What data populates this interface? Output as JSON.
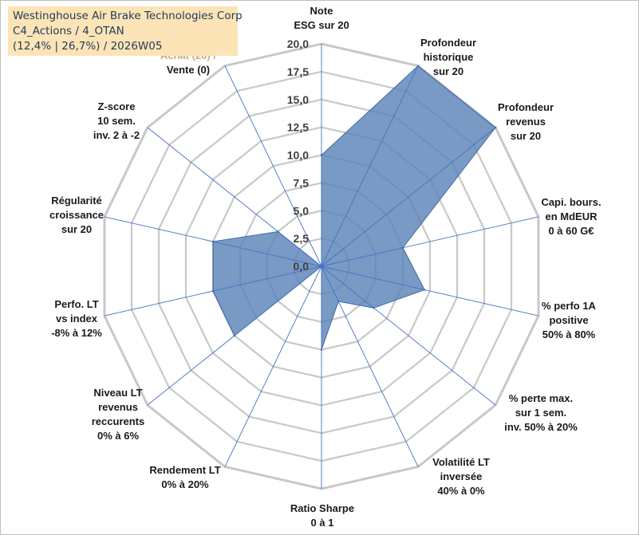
{
  "title_box": {
    "line1": "Westinghouse Air Brake Technologies Corp",
    "line2": "C4_Actions / 4_OTAN",
    "line3": "(12,4% | 26,7%) / 2026W05"
  },
  "colors": {
    "fill": "#5b84b8",
    "stroke": "#3f6aa5",
    "grid": "#c8c8c8",
    "spoke": "#4472c4",
    "title_bg": "#fce4b6",
    "muted_label": "#c9ad72"
  },
  "chart_data": {
    "type": "radar",
    "rmin": 0,
    "rmax": 20,
    "tick_step": 2.5,
    "tick_labels": [
      "0,0",
      "2,5",
      "5,0",
      "7,5",
      "10,0",
      "12,5",
      "15,0",
      "17,5",
      "20,0"
    ],
    "axes": [
      {
        "label": [
          "Note",
          "ESG sur 20"
        ],
        "value": 10.0
      },
      {
        "label": [
          "Profondeur",
          "historique",
          "sur 20"
        ],
        "value": 20.0
      },
      {
        "label": [
          "Profondeur",
          "revenus",
          "sur 20"
        ],
        "value": 20.0
      },
      {
        "label": [
          "Capi. bours.",
          "en MdEUR",
          "0 à 60 G€"
        ],
        "value": 7.5
      },
      {
        "label": [
          "% perfo 1A",
          "positive",
          "50% à 80%"
        ],
        "value": 9.5
      },
      {
        "label": [
          "% perte max.",
          "sur 1 sem.",
          "inv. 50% à 20%"
        ],
        "value": 6.0
      },
      {
        "label": [
          "Volatilité LT",
          "inversée",
          "40% à 0%"
        ],
        "value": 3.5
      },
      {
        "label": [
          "Ratio Sharpe",
          "0 à 1"
        ],
        "value": 7.5
      },
      {
        "label": [
          "Rendement LT",
          "0% à 20%"
        ],
        "value": 0.0
      },
      {
        "label": [
          "Niveau LT",
          "revenus",
          "reccurents",
          "0% à 6%"
        ],
        "value": 10.0
      },
      {
        "label": [
          "Perfo. LT",
          "vs index",
          "-8% à 12%"
        ],
        "value": 10.0
      },
      {
        "label": [
          "Régularité",
          "croissance",
          "sur 20"
        ],
        "value": 10.0
      },
      {
        "label": [
          "Z-score",
          "10 sem.",
          "inv. 2 à -2"
        ],
        "value": 5.0
      },
      {
        "label": [
          "Momentum",
          "Achat (20) /",
          "Vente (0)"
        ],
        "value": 0.0,
        "muted_lines": 2
      }
    ]
  }
}
